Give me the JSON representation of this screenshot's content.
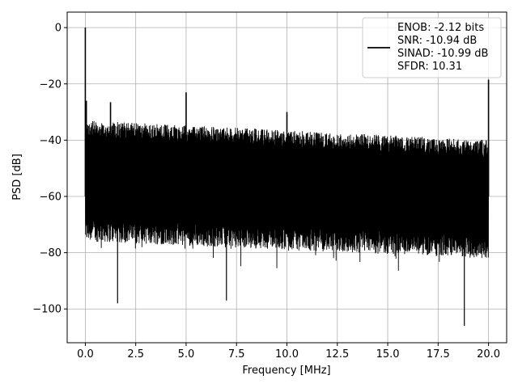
{
  "chart_data": {
    "type": "line",
    "title": "",
    "xlabel": "Frequency [MHz]",
    "ylabel": "PSD [dB]",
    "xlim": [
      -0.9,
      20.9
    ],
    "ylim": [
      -112,
      5.5
    ],
    "xticks": [
      0.0,
      2.5,
      5.0,
      7.5,
      10.0,
      12.5,
      15.0,
      17.5,
      20.0
    ],
    "xtick_labels": [
      "0.0",
      "2.5",
      "5.0",
      "7.5",
      "10.0",
      "12.5",
      "15.0",
      "17.5",
      "20.0"
    ],
    "yticks": [
      0,
      -20,
      -40,
      -60,
      -80,
      -100
    ],
    "ytick_labels": [
      "0",
      "−20",
      "−40",
      "−60",
      "−80",
      "−100"
    ],
    "grid": true,
    "legend_position": "top-right",
    "legend_lines": [
      "ENOB: -2.12 bits",
      "SNR: -10.94 dB",
      "SINAD: -10.99 dB",
      "SFDR: 10.31"
    ],
    "series_color": "#000000",
    "noise_floor": {
      "x_range": [
        0.0,
        20.0
      ],
      "upper_envelope": [
        -33,
        -40
      ],
      "lower_envelope": [
        -76,
        -82
      ],
      "mean_level": -60,
      "min_dips": [
        {
          "x": 1.6,
          "y": -98
        },
        {
          "x": 7.0,
          "y": -97
        },
        {
          "x": 18.8,
          "y": -106
        }
      ]
    },
    "spurs": [
      {
        "x": 0.0,
        "y": 0
      },
      {
        "x": 0.05,
        "y": -26
      },
      {
        "x": 1.25,
        "y": -26.5
      },
      {
        "x": 5.0,
        "y": -23
      },
      {
        "x": 10.0,
        "y": -30
      },
      {
        "x": 20.0,
        "y": -18.5
      }
    ]
  }
}
